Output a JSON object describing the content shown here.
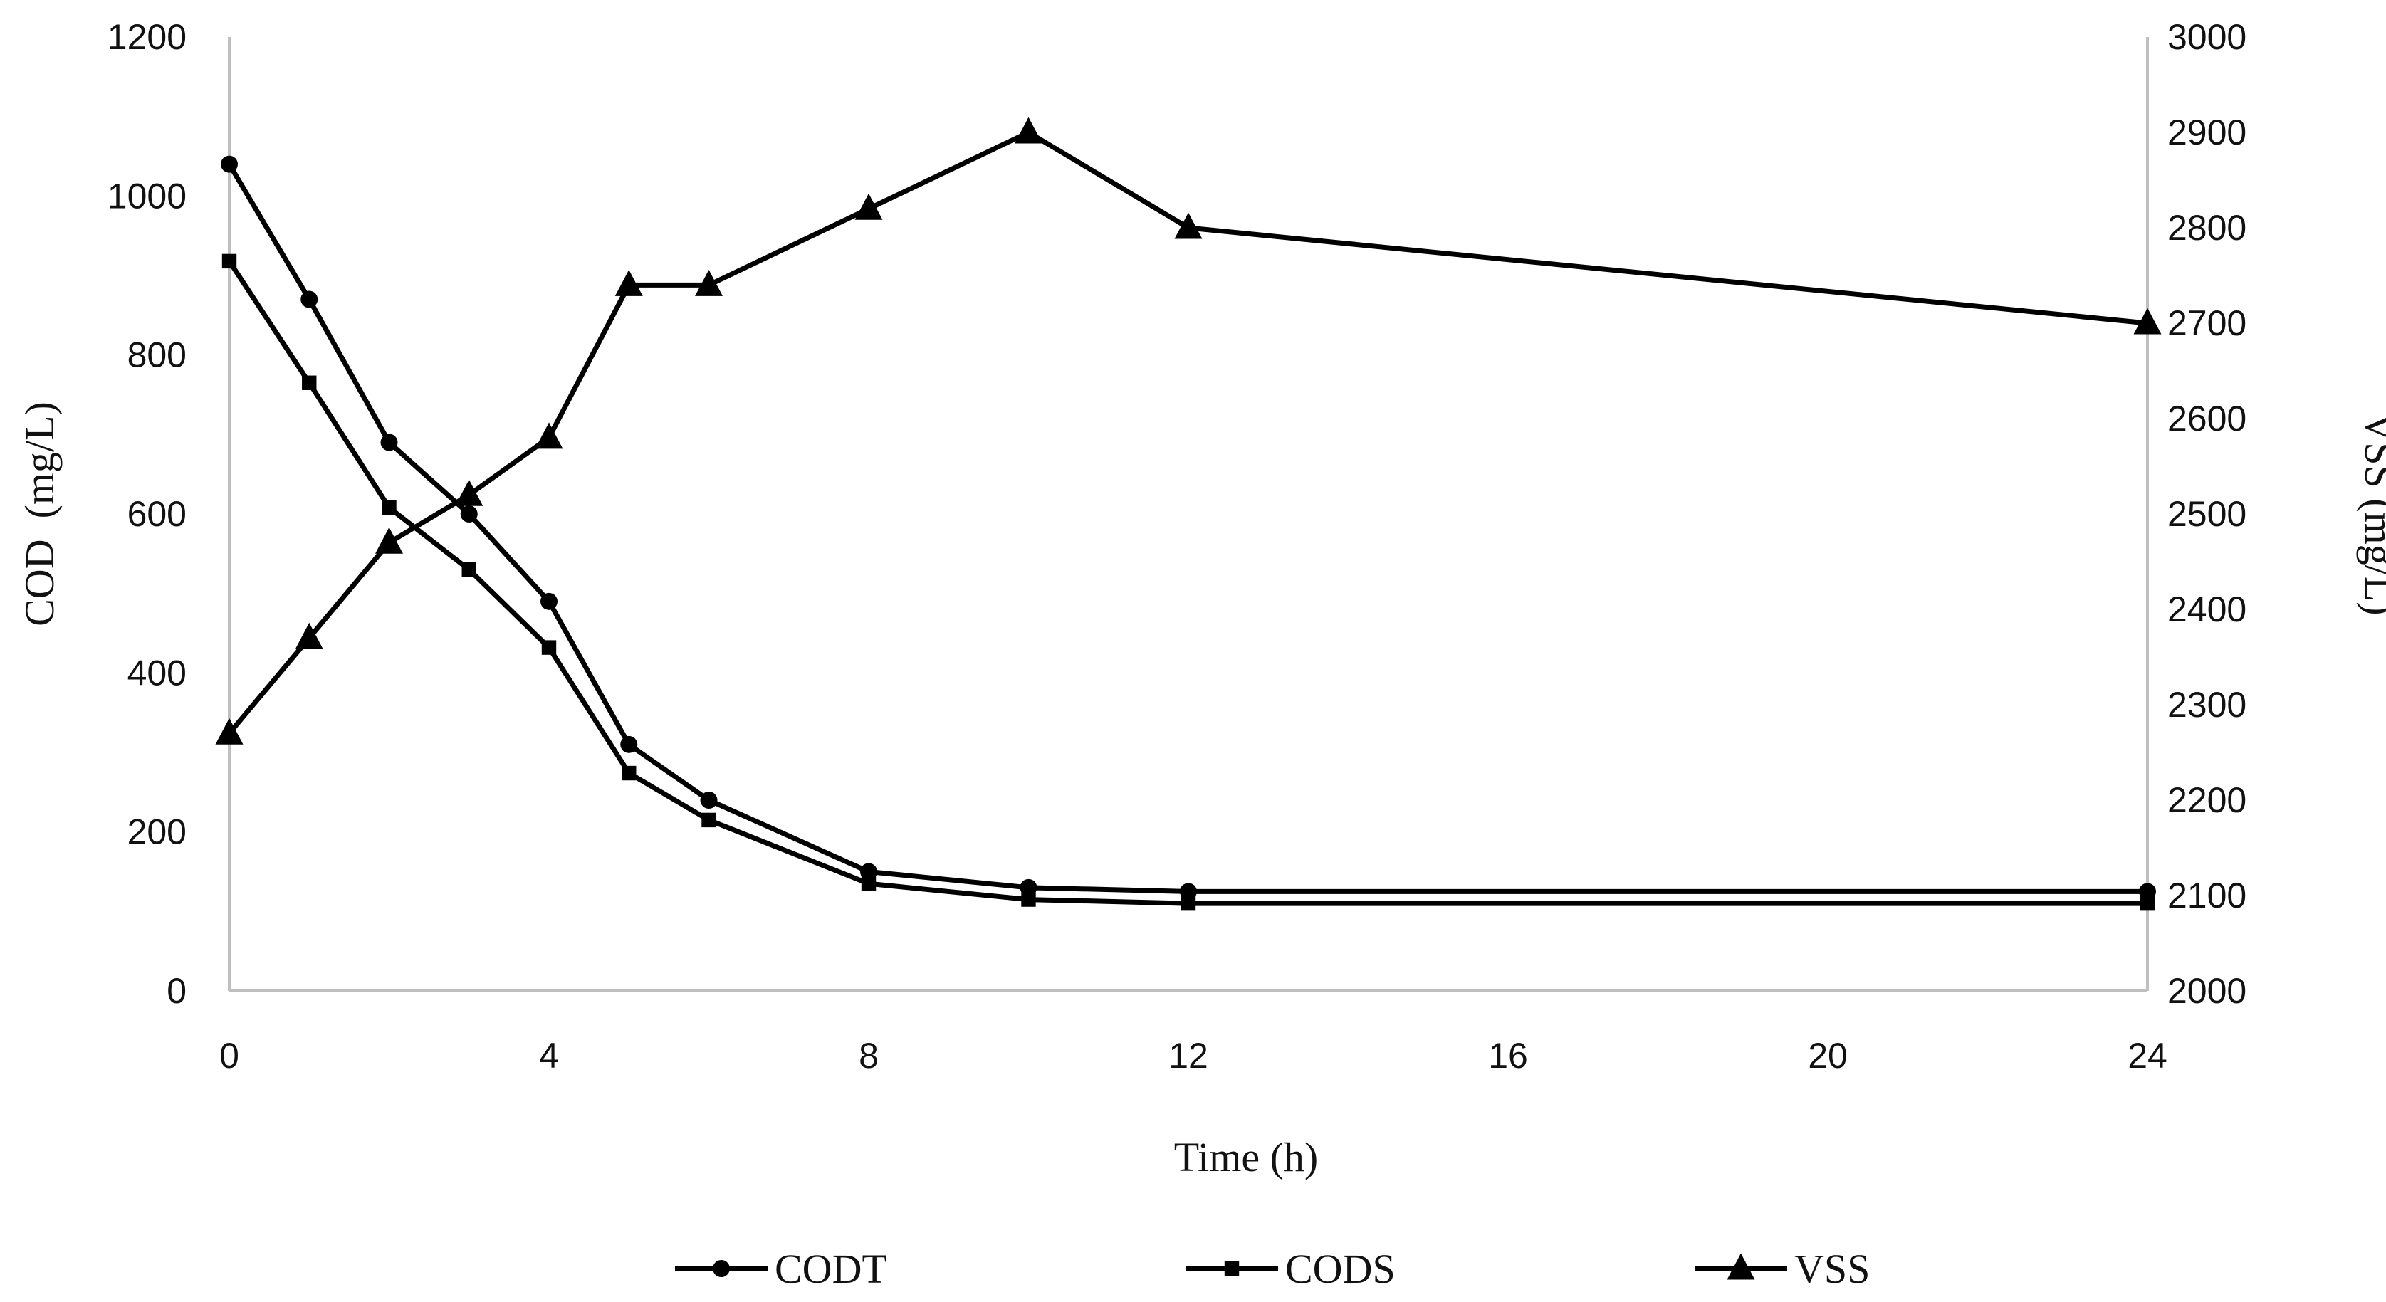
{
  "chart_data": {
    "type": "line",
    "title": "",
    "xlabel": "Time (h)",
    "ylabel": "COD  (mg/L)",
    "ylabel_right": "VSS (mg/L)",
    "x_ticks": [
      "0",
      "4",
      "8",
      "12",
      "16",
      "20",
      "24"
    ],
    "xlim": [
      0,
      24
    ],
    "y_ticks": [
      "0",
      "200",
      "400",
      "600",
      "800",
      "1000",
      "1200"
    ],
    "ylim": [
      0,
      1200
    ],
    "y2_ticks": [
      "2000",
      "2100",
      "2200",
      "2300",
      "2400",
      "2500",
      "2600",
      "2700",
      "2800",
      "2900",
      "3000"
    ],
    "y2lim": [
      2000,
      3000
    ],
    "grid": false,
    "legend_position": "bottom",
    "series": [
      {
        "name": "CODT",
        "axis": "left",
        "marker": "circle",
        "color": "#000000",
        "x": [
          0,
          1,
          2,
          3,
          4,
          5,
          6,
          8,
          10,
          12,
          24
        ],
        "values": [
          1040,
          870,
          690,
          600,
          490,
          310,
          240,
          150,
          130,
          125,
          125
        ]
      },
      {
        "name": "CODS",
        "axis": "left",
        "marker": "square",
        "color": "#000000",
        "x": [
          0,
          1,
          2,
          3,
          4,
          5,
          6,
          8,
          10,
          12,
          24
        ],
        "values": [
          918,
          765,
          608,
          530,
          432,
          274,
          215,
          135,
          115,
          110,
          110
        ]
      },
      {
        "name": "VSS",
        "axis": "right",
        "marker": "triangle",
        "color": "#000000",
        "x": [
          0,
          1,
          2,
          3,
          4,
          5,
          6,
          8,
          10,
          12,
          24
        ],
        "values": [
          2270,
          2370,
          2470,
          2520,
          2580,
          2740,
          2740,
          2820,
          2900,
          2800,
          2700
        ]
      }
    ]
  }
}
